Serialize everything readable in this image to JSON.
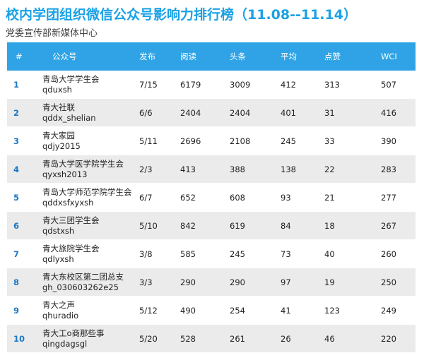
{
  "title": "校内学团组织微信公众号影响力排行榜（11.08--11.14）",
  "subtitle": "党委宣传部新媒体中心",
  "table": {
    "headers": [
      "#",
      "公众号",
      "发布",
      "阅读",
      "头条",
      "平均",
      "点赞",
      "WCI"
    ],
    "rows": [
      {
        "rank": "1",
        "name": "青岛大学学生会",
        "id": "qduxsh",
        "publish": "7/15",
        "reads": "6179",
        "headline": "3009",
        "avg": "412",
        "likes": "313",
        "wci": "507"
      },
      {
        "rank": "2",
        "name": "青大社联",
        "id": "qddx_shelian",
        "publish": "6/6",
        "reads": "2404",
        "headline": "2404",
        "avg": "401",
        "likes": "31",
        "wci": "416"
      },
      {
        "rank": "3",
        "name": "青大家园",
        "id": "qdjy2015",
        "publish": "5/11",
        "reads": "2696",
        "headline": "2108",
        "avg": "245",
        "likes": "33",
        "wci": "390"
      },
      {
        "rank": "4",
        "name": "青岛大学医学院学生会",
        "id": "qyxsh2013",
        "publish": "2/3",
        "reads": "413",
        "headline": "388",
        "avg": "138",
        "likes": "22",
        "wci": "283"
      },
      {
        "rank": "5",
        "name": "青岛大学师范学院学生会",
        "id": "qddxsfxyxsh",
        "publish": "6/7",
        "reads": "652",
        "headline": "608",
        "avg": "93",
        "likes": "21",
        "wci": "277"
      },
      {
        "rank": "6",
        "name": "青大三团学生会",
        "id": "qdstxsh",
        "publish": "5/10",
        "reads": "842",
        "headline": "619",
        "avg": "84",
        "likes": "18",
        "wci": "267"
      },
      {
        "rank": "7",
        "name": "青大旅院学生会",
        "id": "qdlyxsh",
        "publish": "3/8",
        "reads": "585",
        "headline": "245",
        "avg": "73",
        "likes": "40",
        "wci": "260"
      },
      {
        "rank": "8",
        "name": "青大东校区第二团总支",
        "id": "gh_030603262e25",
        "publish": "3/3",
        "reads": "290",
        "headline": "290",
        "avg": "97",
        "likes": "19",
        "wci": "250"
      },
      {
        "rank": "9",
        "name": "青大之声",
        "id": "qhuradio",
        "publish": "5/12",
        "reads": "490",
        "headline": "254",
        "avg": "41",
        "likes": "123",
        "wci": "249"
      },
      {
        "rank": "10",
        "name": "青大工o商那些事",
        "id": "qingdagsgl",
        "publish": "5/20",
        "reads": "528",
        "headline": "261",
        "avg": "26",
        "likes": "46",
        "wci": "220"
      }
    ]
  }
}
